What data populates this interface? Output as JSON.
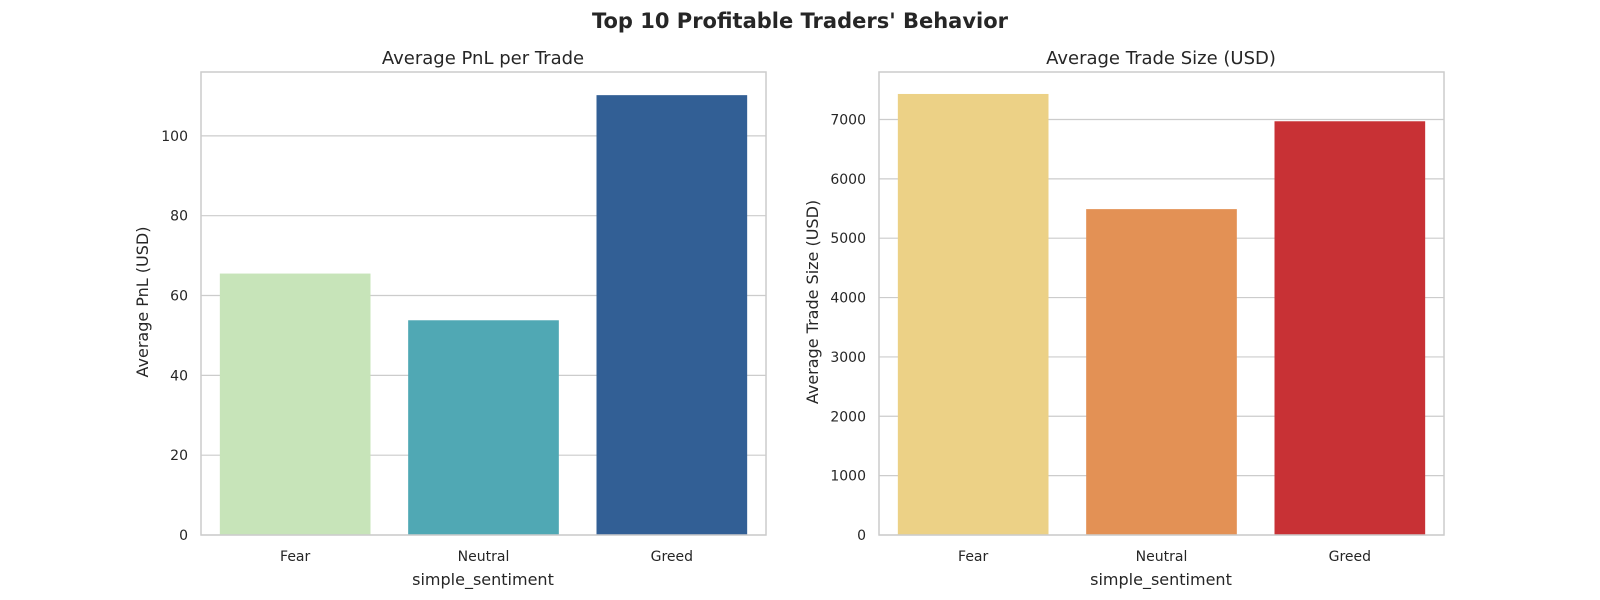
{
  "figure": {
    "title": "Top 10 Profitable Traders' Behavior"
  },
  "chart_data": [
    {
      "type": "bar",
      "title": "Average PnL per Trade",
      "xlabel": "simple_sentiment",
      "ylabel": "Average PnL (USD)",
      "categories": [
        "Fear",
        "Neutral",
        "Greed"
      ],
      "values": [
        65.5,
        53.8,
        110.2
      ],
      "colors": [
        "#c7e4b9",
        "#50a8b4",
        "#325f95"
      ],
      "ylim": [
        0,
        116
      ],
      "yticks": [
        0,
        20,
        40,
        60,
        80,
        100
      ],
      "grid": true
    },
    {
      "type": "bar",
      "title": "Average Trade Size (USD)",
      "xlabel": "simple_sentiment",
      "ylabel": "Average Trade Size (USD)",
      "categories": [
        "Fear",
        "Neutral",
        "Greed"
      ],
      "values": [
        7430,
        5490,
        6970
      ],
      "colors": [
        "#ecd186",
        "#e39155",
        "#c83135"
      ],
      "ylim": [
        0,
        7800
      ],
      "yticks": [
        0,
        1000,
        2000,
        3000,
        4000,
        5000,
        6000,
        7000
      ],
      "grid": true
    }
  ]
}
